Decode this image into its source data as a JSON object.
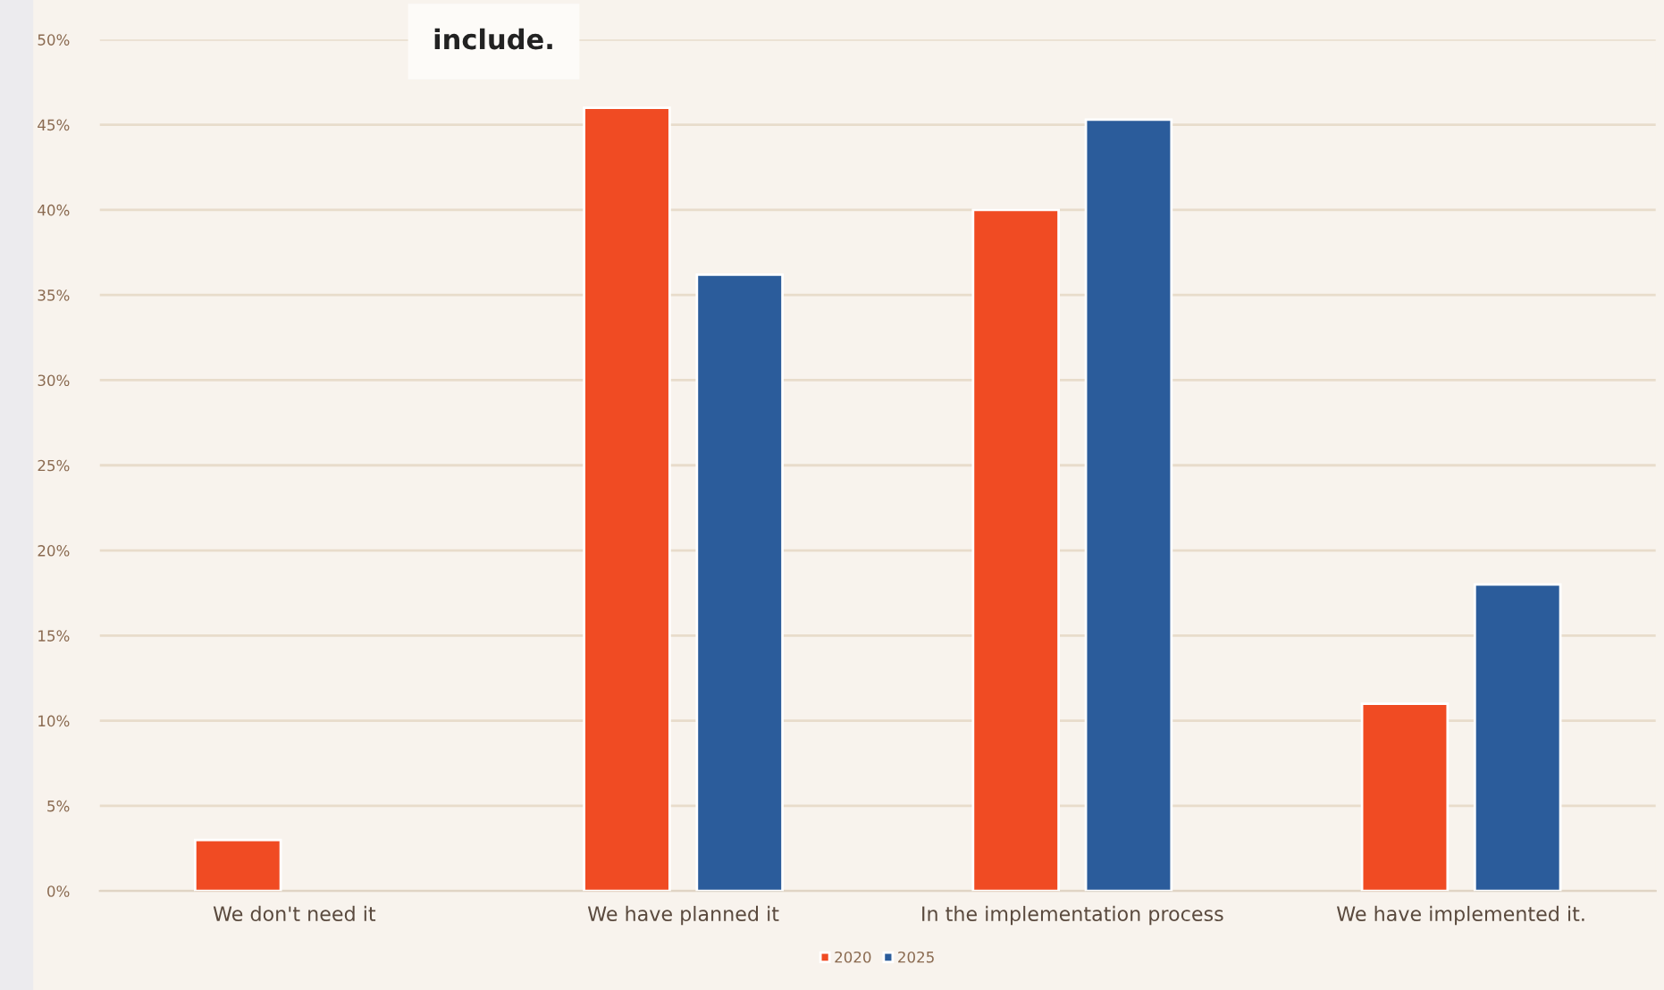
{
  "chart_data": {
    "type": "bar",
    "annotations": [
      "include."
    ],
    "categories": [
      "We don't need it",
      "We have planned it",
      "In the implementation process",
      "We have implemented it."
    ],
    "series": [
      {
        "name": "2020",
        "color": "#f04b23",
        "values": [
          3,
          46,
          40,
          11
        ]
      },
      {
        "name": "2025",
        "color": "#2b5c9b",
        "values": [
          null,
          36.2,
          45.3,
          18
        ]
      }
    ],
    "ylim": [
      0,
      50
    ],
    "yticks": [
      {
        "value": 0,
        "label": "0%"
      },
      {
        "value": 5,
        "label": "5%"
      },
      {
        "value": 10,
        "label": "10%"
      },
      {
        "value": 15,
        "label": "15%"
      },
      {
        "value": 20,
        "label": "20%"
      },
      {
        "value": 25,
        "label": "25%"
      },
      {
        "value": 30,
        "label": "30%"
      },
      {
        "value": 35,
        "label": "35%"
      },
      {
        "value": 40,
        "label": "40%"
      },
      {
        "value": 45,
        "label": "45%"
      },
      {
        "value": 50,
        "label": "50%"
      }
    ],
    "grid": "y",
    "legend": "bottom"
  }
}
